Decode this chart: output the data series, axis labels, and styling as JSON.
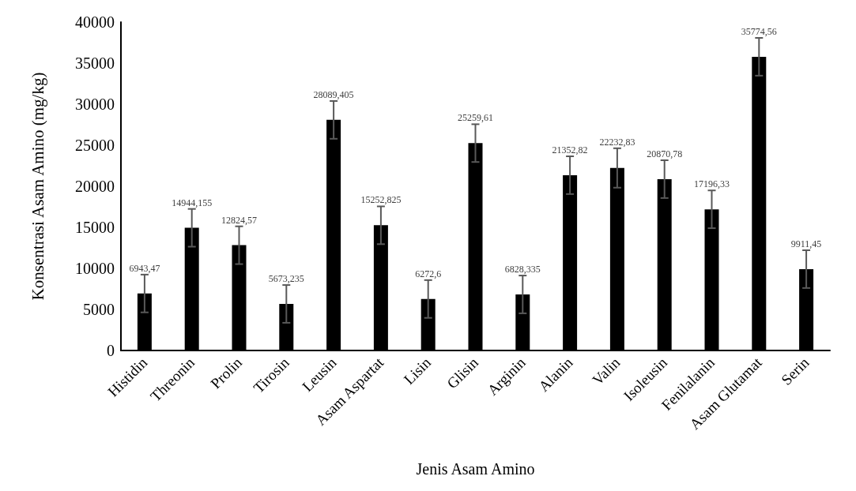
{
  "chart_data": {
    "type": "bar",
    "xlabel": "Jenis Asam Amino",
    "ylabel": "Konsentrasi Asam Amino (mg/kg)",
    "categories": [
      "Histidin",
      "Threonin",
      "Prolin",
      "Tirosin",
      "Leusin",
      "Asam Aspartat",
      "Lisin",
      "Glisin",
      "Arginin",
      "Alanin",
      "Valin",
      "Isoleusin",
      "Fenilalanin",
      "Asam Glutamat",
      "Serin"
    ],
    "values": [
      6943.47,
      14944.155,
      12824.57,
      5673.235,
      28089.405,
      15252.825,
      6272.6,
      25259.61,
      6828.335,
      21352.82,
      22232.83,
      20870.78,
      17196.33,
      35774.56,
      9911.45
    ],
    "value_labels": [
      "6943,47",
      "14944,155",
      "12824,57",
      "5673,235",
      "28089,405",
      "15252,825",
      "6272,6",
      "25259,61",
      "6828,335",
      "21352,82",
      "22232,83",
      "20870,78",
      "17196,33",
      "35774,56",
      "9911,45"
    ],
    "errors": [
      2300,
      2300,
      2300,
      2300,
      2300,
      2300,
      2300,
      2300,
      2300,
      2300,
      2400,
      2300,
      2300,
      2300,
      2300
    ],
    "color": "#000000",
    "ylim": [
      0,
      40000
    ],
    "yticks": [
      0,
      5000,
      10000,
      15000,
      20000,
      25000,
      30000,
      35000,
      40000
    ],
    "grid": false
  }
}
